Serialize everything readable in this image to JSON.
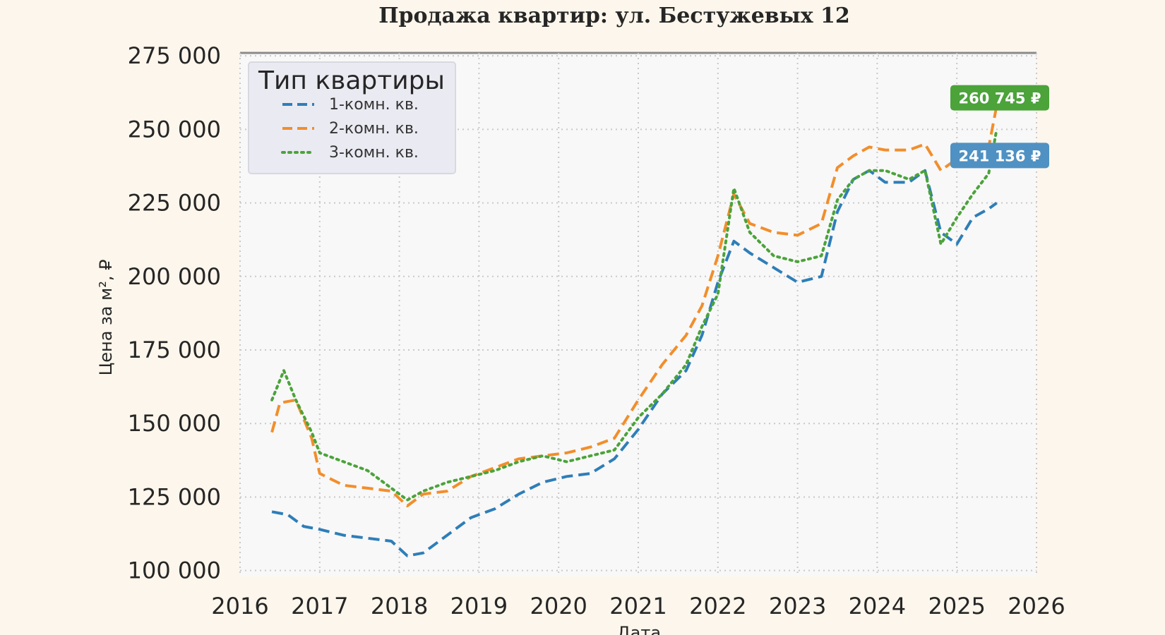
{
  "chart_data": {
    "type": "line",
    "title": "Продажа квартир: ул. Бестужевых 12",
    "xlabel": "Дата",
    "ylabel": "Цена за м², ₽",
    "xlim": [
      2016.0,
      2026.0
    ],
    "ylim": [
      98000,
      276000
    ],
    "x_ticks": [
      2016,
      2017,
      2018,
      2019,
      2020,
      2021,
      2022,
      2023,
      2024,
      2025,
      2026
    ],
    "x_tick_labels": [
      "2016",
      "2017",
      "2018",
      "2019",
      "2020",
      "2021",
      "2022",
      "2023",
      "2024",
      "2025",
      "2026"
    ],
    "y_ticks": [
      100000,
      125000,
      150000,
      175000,
      200000,
      225000,
      250000,
      275000
    ],
    "y_tick_labels": [
      "100 000",
      "125 000",
      "150 000",
      "175 000",
      "200 000",
      "225 000",
      "250 000",
      "275 000"
    ],
    "grid": true,
    "legend": {
      "title": "Тип квартиры",
      "position": "upper-left",
      "entries": [
        "1-комн. кв.",
        "2-комн. кв.",
        "3-комн. кв."
      ]
    },
    "series": [
      {
        "name": "1-комн. кв.",
        "color": "#2e7eb8",
        "dash": "dashed",
        "x": [
          2016.4,
          2016.6,
          2016.8,
          2017.0,
          2017.3,
          2017.6,
          2017.9,
          2018.1,
          2018.3,
          2018.6,
          2018.9,
          2019.2,
          2019.5,
          2019.8,
          2020.1,
          2020.4,
          2020.7,
          2021.0,
          2021.3,
          2021.6,
          2021.8,
          2022.0,
          2022.2,
          2022.4,
          2022.7,
          2023.0,
          2023.3,
          2023.5,
          2023.7,
          2023.9,
          2024.1,
          2024.4,
          2024.6,
          2024.8,
          2025.0,
          2025.2,
          2025.4,
          2025.5
        ],
        "y": [
          120000,
          119000,
          115000,
          114000,
          112000,
          111000,
          110000,
          105000,
          106000,
          112000,
          118000,
          121000,
          126000,
          130000,
          132000,
          133000,
          138000,
          148000,
          160000,
          168000,
          180000,
          198000,
          212000,
          208000,
          203000,
          198000,
          200000,
          222000,
          233000,
          236000,
          232000,
          232000,
          236000,
          215000,
          211000,
          220000,
          223000,
          225000
        ]
      },
      {
        "name": "2-комн. кв.",
        "color": "#f28e2b",
        "dash": "dashed",
        "x": [
          2016.4,
          2016.5,
          2016.7,
          2016.9,
          2017.0,
          2017.3,
          2017.6,
          2017.9,
          2018.1,
          2018.3,
          2018.6,
          2018.9,
          2019.2,
          2019.5,
          2019.8,
          2020.1,
          2020.4,
          2020.7,
          2021.0,
          2021.3,
          2021.6,
          2021.8,
          2022.0,
          2022.2,
          2022.4,
          2022.7,
          2023.0,
          2023.3,
          2023.5,
          2023.7,
          2023.9,
          2024.1,
          2024.4,
          2024.6,
          2024.8,
          2025.0,
          2025.2,
          2025.4,
          2025.5
        ],
        "y": [
          147000,
          157000,
          158000,
          145000,
          133000,
          129000,
          128000,
          127000,
          122000,
          126000,
          127000,
          132000,
          135000,
          138000,
          139000,
          140000,
          142000,
          145000,
          158000,
          170000,
          180000,
          190000,
          207000,
          228000,
          218000,
          215000,
          214000,
          218000,
          237000,
          241000,
          244000,
          243000,
          243000,
          245000,
          236000,
          240000,
          238000,
          244000,
          258000
        ]
      },
      {
        "name": "3-комн. кв.",
        "color": "#4ba33a",
        "dash": "dotted",
        "x": [
          2016.4,
          2016.55,
          2016.7,
          2016.9,
          2017.0,
          2017.3,
          2017.6,
          2017.9,
          2018.1,
          2018.3,
          2018.6,
          2018.9,
          2019.2,
          2019.5,
          2019.8,
          2020.1,
          2020.4,
          2020.7,
          2021.0,
          2021.3,
          2021.6,
          2021.8,
          2022.0,
          2022.2,
          2022.4,
          2022.7,
          2023.0,
          2023.3,
          2023.5,
          2023.7,
          2023.9,
          2024.1,
          2024.4,
          2024.6,
          2024.8,
          2025.0,
          2025.2,
          2025.4,
          2025.5
        ],
        "y": [
          158000,
          168000,
          158000,
          147000,
          140000,
          137000,
          134000,
          128000,
          124000,
          127000,
          130000,
          132000,
          134000,
          137000,
          139000,
          137000,
          139000,
          141000,
          152000,
          160000,
          170000,
          183000,
          194000,
          230000,
          215000,
          207000,
          205000,
          207000,
          226000,
          233000,
          236000,
          236000,
          233000,
          236000,
          211000,
          220000,
          228000,
          235000,
          250000
        ]
      }
    ],
    "end_labels": [
      {
        "text": "260 745 ₽",
        "value": 260745,
        "color": "#4ba33a"
      },
      {
        "text": "241 136 ₽",
        "value": 241136,
        "color": "#4f91c2"
      }
    ]
  }
}
